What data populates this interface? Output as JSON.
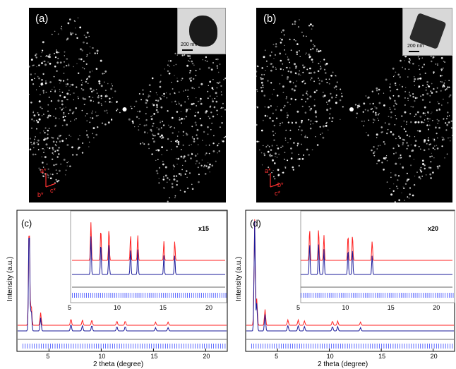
{
  "panels": {
    "a": {
      "label": "(a)",
      "scale_text": "200 nm",
      "axes": [
        "a*",
        "b*",
        "c*"
      ]
    },
    "b": {
      "label": "(b)",
      "scale_text": "200 nm",
      "axes": [
        "a*",
        "b*",
        "c*"
      ]
    },
    "c": {
      "label": "(c)",
      "multiplier": "x15"
    },
    "d": {
      "label": "(d)",
      "multiplier": "x20"
    }
  },
  "colors": {
    "observed": "#ff2020",
    "calculated": "#1a1a9a",
    "difference": "#333333",
    "ticks": "#2030ff"
  },
  "chart_data": [
    {
      "type": "line",
      "xlabel": "2 theta (degree)",
      "ylabel": "Intensity (a.u.)",
      "xlim": [
        2,
        22
      ],
      "xticks": [
        5,
        10,
        15,
        20
      ],
      "inset": {
        "multiplier": "x15",
        "xlim": [
          5,
          22
        ],
        "xticks": [
          5,
          10,
          15,
          20
        ]
      },
      "series": [
        {
          "values_peaks": [
            [
              3.1,
              1.0
            ],
            [
              3.3,
              0.2
            ],
            [
              4.2,
              0.12
            ],
            [
              7.1,
              0.06
            ],
            [
              8.2,
              0.05
            ],
            [
              9.1,
              0.05
            ],
            [
              11.5,
              0.04
            ],
            [
              12.3,
              0.04
            ],
            [
              15.2,
              0.03
            ],
            [
              16.4,
              0.03
            ]
          ]
        },
        {
          "values_peaks": [
            [
              3.1,
              1.0
            ],
            [
              3.3,
              0.2
            ],
            [
              4.2,
              0.12
            ],
            [
              7.1,
              0.06
            ],
            [
              8.2,
              0.05
            ],
            [
              9.1,
              0.05
            ],
            [
              11.5,
              0.04
            ],
            [
              12.3,
              0.04
            ],
            [
              15.2,
              0.03
            ],
            [
              16.4,
              0.03
            ]
          ]
        }
      ]
    },
    {
      "type": "line",
      "xlabel": "2 theta (degree)",
      "ylabel": "Intensity (a.u.)",
      "xlim": [
        2,
        22
      ],
      "xticks": [
        5,
        10,
        15,
        20
      ],
      "inset": {
        "multiplier": "x20",
        "xlim": [
          5,
          22
        ],
        "xticks": [
          5,
          10,
          15,
          20
        ]
      },
      "series": [
        {
          "values_peaks": [
            [
              2.8,
              1.0
            ],
            [
              3.0,
              0.25
            ],
            [
              3.8,
              0.15
            ],
            [
              6.0,
              0.05
            ],
            [
              7.0,
              0.05
            ],
            [
              7.6,
              0.04
            ],
            [
              10.3,
              0.04
            ],
            [
              10.8,
              0.04
            ],
            [
              13.0,
              0.03
            ]
          ]
        },
        {
          "values_peaks": [
            [
              2.8,
              1.0
            ],
            [
              3.0,
              0.25
            ],
            [
              3.8,
              0.15
            ],
            [
              6.0,
              0.05
            ],
            [
              7.0,
              0.05
            ],
            [
              7.6,
              0.04
            ],
            [
              10.3,
              0.04
            ],
            [
              10.8,
              0.04
            ],
            [
              13.0,
              0.03
            ]
          ]
        }
      ]
    }
  ]
}
